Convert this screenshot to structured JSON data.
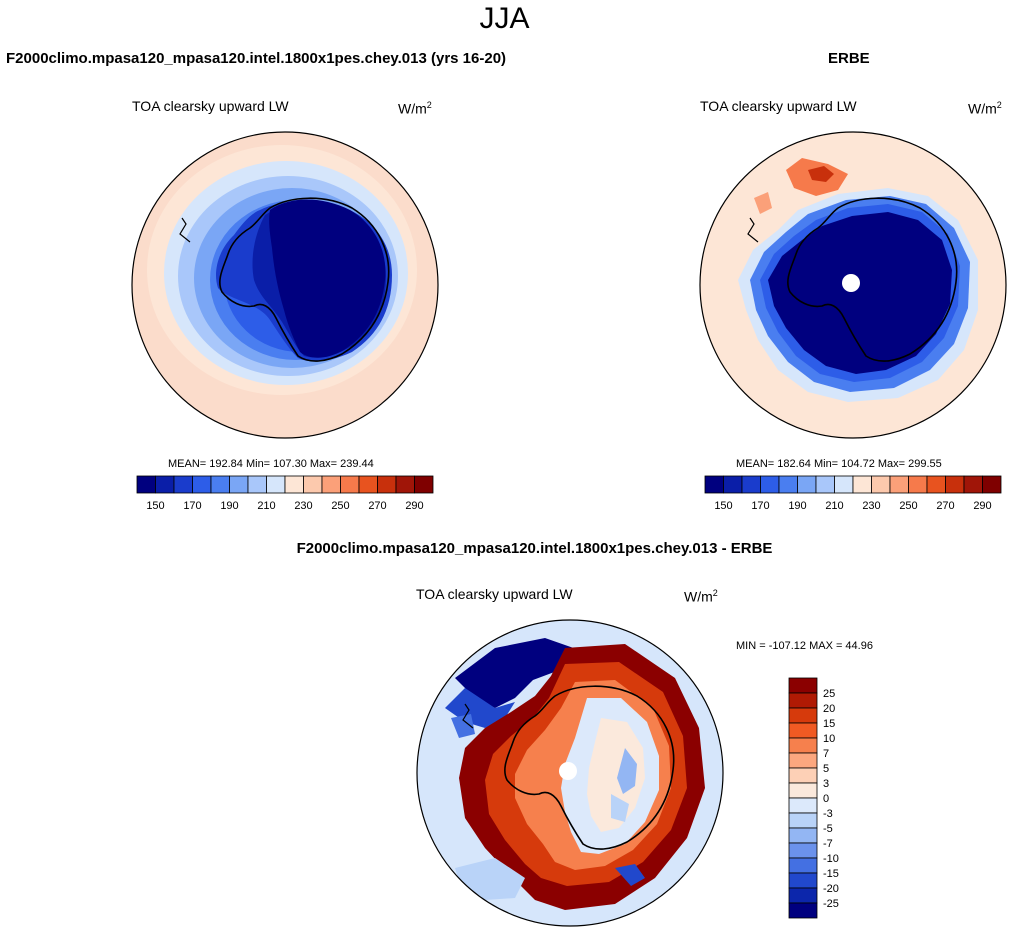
{
  "header": {
    "title": "JJA"
  },
  "panels": {
    "model": {
      "title": "F2000climo.mpasa120_mpasa120.intel.1800x1pes.chey.013 (yrs 16-20)",
      "variable": "TOA clearsky upward LW",
      "units_base": "W/m",
      "units_exp": "2",
      "stats": "MEAN= 192.84  Min= 107.30  Max= 239.44"
    },
    "obs": {
      "title": "ERBE",
      "variable": "TOA clearsky upward LW",
      "units_base": "W/m",
      "units_exp": "2",
      "stats": "MEAN= 182.64  Min= 104.72  Max= 299.55"
    },
    "diff": {
      "title": "F2000climo.mpasa120_mpasa120.intel.1800x1pes.chey.013 - ERBE",
      "variable": "TOA clearsky upward LW",
      "units_base": "W/m",
      "units_exp": "2",
      "stats": "MIN = -107.12 MAX =  44.96"
    }
  },
  "colorbar_horizontal": {
    "colors": [
      "#00007f",
      "#0a1ea8",
      "#1a3ccc",
      "#2d5de8",
      "#4a7ef0",
      "#7aa6f5",
      "#a9c7fa",
      "#d6e6fb",
      "#fde6d6",
      "#fcc9ad",
      "#fba079",
      "#f67a4b",
      "#e8531f",
      "#c8300c",
      "#a01508",
      "#7f0000"
    ],
    "tick_labels": [
      "150",
      "170",
      "190",
      "210",
      "230",
      "250",
      "270",
      "290"
    ]
  },
  "colorbar_vertical": {
    "colors_top_to_bottom": [
      "#8b0000",
      "#b01a04",
      "#d63a0c",
      "#f05a23",
      "#f6804d",
      "#fca77f",
      "#fdd0b6",
      "#fbe9dc",
      "#dce9fb",
      "#b9d3f8",
      "#93b6f3",
      "#6b92ec",
      "#4470e2",
      "#2148cc",
      "#0c26ab",
      "#00007f"
    ],
    "tick_labels": [
      "25",
      "20",
      "15",
      "10",
      "7",
      "5",
      "3",
      "0",
      "-3",
      "-5",
      "-7",
      "-10",
      "-15",
      "-20",
      "-25"
    ]
  }
}
